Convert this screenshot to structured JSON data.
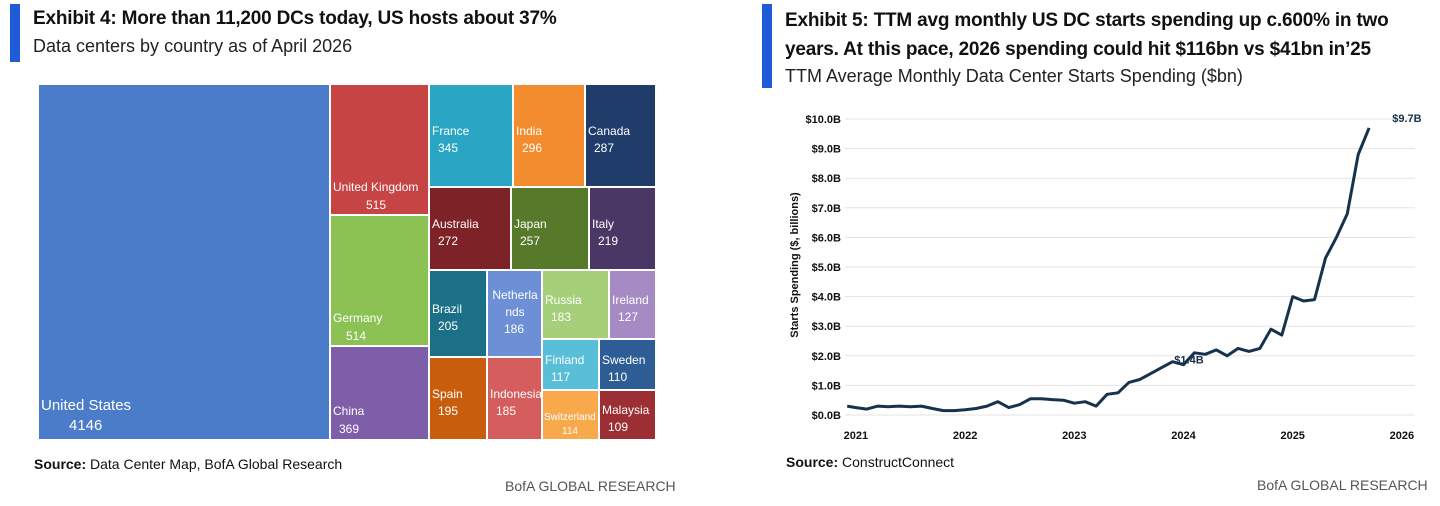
{
  "left_panel": {
    "title": "Exhibit 4: More than 11,200 DCs today, US hosts about 37%",
    "subtitle": "Data centers by country as of April 2026",
    "source_label": "Source:",
    "source_text": "Data Center Map, BofA Global Research",
    "brand": "BofA GLOBAL RESEARCH"
  },
  "right_panel": {
    "title_line1": "Exhibit 5: TTM avg monthly US DC starts spending up c.600% in two",
    "title_line2": "years. At this pace, 2026 spending could hit $116bn vs $41bn in’25",
    "subtitle": "TTM Average Monthly Data Center Starts Spending ($bn)",
    "source_label": "Source:",
    "source_text": "ConstructConnect",
    "brand": "BofA GLOBAL RESEARCH"
  },
  "chart_data": [
    {
      "type": "treemap",
      "title": "Data centers by country as of April 2026",
      "items": [
        {
          "name": "United States",
          "value": 4146,
          "color": "#4a7cc9"
        },
        {
          "name": "United Kingdom",
          "value": 515,
          "color": "#c64444"
        },
        {
          "name": "Germany",
          "value": 514,
          "color": "#8cc153"
        },
        {
          "name": "China",
          "value": 369,
          "color": "#7e5ea8"
        },
        {
          "name": "France",
          "value": 345,
          "color": "#2aa6c4"
        },
        {
          "name": "India",
          "value": 296,
          "color": "#f28c2f"
        },
        {
          "name": "Canada",
          "value": 287,
          "color": "#1f3c6b"
        },
        {
          "name": "Australia",
          "value": 272,
          "color": "#7d2226"
        },
        {
          "name": "Japan",
          "value": 257,
          "color": "#567a2a"
        },
        {
          "name": "Italy",
          "value": 219,
          "color": "#4a3766"
        },
        {
          "name": "Brazil",
          "value": 205,
          "color": "#1b6f86"
        },
        {
          "name": "Netherlands",
          "display": "Netherla nds",
          "value": 186,
          "color": "#6c8fd6"
        },
        {
          "name": "Russia",
          "value": 183,
          "color": "#a6cf79"
        },
        {
          "name": "Ireland",
          "value": 127,
          "color": "#a58ac4"
        },
        {
          "name": "Finland",
          "value": 117,
          "color": "#59bfd9"
        },
        {
          "name": "Sweden",
          "value": 110,
          "color": "#2e5d96"
        },
        {
          "name": "Spain",
          "value": 195,
          "color": "#c95d0e"
        },
        {
          "name": "Indonesia",
          "value": 185,
          "color": "#d65d5d"
        },
        {
          "name": "Switzerland",
          "value": 114,
          "color": "#f7a94c"
        },
        {
          "name": "Malaysia",
          "value": 109,
          "color": "#9c2f33"
        }
      ]
    },
    {
      "type": "line",
      "title": "TTM Average Monthly Data Center Starts Spending ($bn)",
      "ylabel": "Starts Spending ($, billions)",
      "ylim": [
        0,
        10
      ],
      "yticks": [
        "$0.0B",
        "$1.0B",
        "$2.0B",
        "$3.0B",
        "$4.0B",
        "$5.0B",
        "$6.0B",
        "$7.0B",
        "$8.0B",
        "$9.0B",
        "$10.0B"
      ],
      "xticks": [
        "2021",
        "2022",
        "2023",
        "2024",
        "2025",
        "2026"
      ],
      "series": [
        {
          "name": "TTM average monthly DC starts spending",
          "color": "#17324d",
          "x": [
            2020.92,
            2021.0,
            2021.1,
            2021.2,
            2021.3,
            2021.4,
            2021.5,
            2021.6,
            2021.7,
            2021.8,
            2021.9,
            2022.0,
            2022.1,
            2022.2,
            2022.3,
            2022.4,
            2022.5,
            2022.6,
            2022.7,
            2022.8,
            2022.9,
            2023.0,
            2023.1,
            2023.2,
            2023.3,
            2023.4,
            2023.5,
            2023.6,
            2023.7,
            2023.8,
            2023.9,
            2024.0,
            2024.1,
            2024.2,
            2024.3,
            2024.4,
            2024.5,
            2024.6,
            2024.7,
            2024.8,
            2024.9,
            2025.0,
            2025.1,
            2025.2,
            2025.3,
            2025.4,
            2025.5,
            2025.6,
            2025.7,
            2025.8,
            2025.9,
            2026.0,
            2026.08
          ],
          "values": [
            0.3,
            0.25,
            0.2,
            0.3,
            0.28,
            0.3,
            0.28,
            0.3,
            0.22,
            0.15,
            0.15,
            0.18,
            0.22,
            0.3,
            0.45,
            0.25,
            0.35,
            0.55,
            0.55,
            0.52,
            0.5,
            0.4,
            0.45,
            0.3,
            0.7,
            0.75,
            1.1,
            1.2,
            1.4,
            1.6,
            1.8,
            1.7,
            2.1,
            2.05,
            2.2,
            2.0,
            2.25,
            2.15,
            2.25,
            2.9,
            2.7,
            4.0,
            3.85,
            3.9,
            5.3,
            6.0,
            6.8,
            8.8,
            9.7,
            null,
            null,
            null,
            null
          ]
        }
      ],
      "annotations": [
        {
          "label": "$1.4B",
          "x": 2024.05,
          "y": 1.4
        },
        {
          "label": "$9.7B",
          "x": 2026.0,
          "y": 9.7
        }
      ]
    }
  ]
}
